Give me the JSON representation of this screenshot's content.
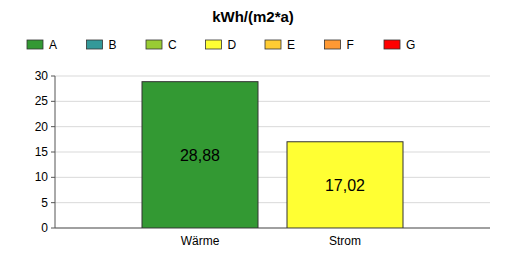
{
  "chart_data": {
    "type": "bar",
    "title": "kWh/(m2*a)",
    "categories": [
      "Wärme",
      "Strom"
    ],
    "values": [
      28.88,
      17.02
    ],
    "value_labels": [
      "28,88",
      "17,02"
    ],
    "colors": [
      "#339933",
      "#ffff33"
    ],
    "classes": [
      {
        "name": "A",
        "color": "#339933"
      },
      {
        "name": "B",
        "color": "#339999"
      },
      {
        "name": "C",
        "color": "#99cc33"
      },
      {
        "name": "D",
        "color": "#ffff33"
      },
      {
        "name": "E",
        "color": "#ffcc33"
      },
      {
        "name": "F",
        "color": "#ff9933"
      },
      {
        "name": "G",
        "color": "#ff0000"
      }
    ],
    "ylim": [
      0,
      30
    ],
    "yticks": [
      0,
      5,
      10,
      15,
      20,
      25,
      30
    ],
    "grid": true,
    "legend": "top",
    "data_labels": true
  }
}
